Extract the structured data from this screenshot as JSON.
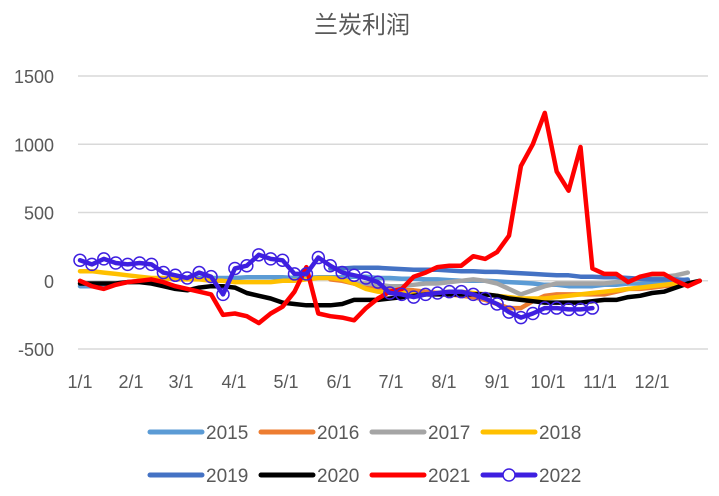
{
  "chart_data": {
    "type": "line",
    "title": "兰炭利润",
    "xlabel": "",
    "ylabel": "",
    "ylim": [
      -500,
      1500
    ],
    "yticks": [
      1500,
      1000,
      500,
      0,
      -500
    ],
    "xticks": [
      "1/1",
      "2/1",
      "3/1",
      "4/1",
      "5/1",
      "6/1",
      "7/1",
      "8/1",
      "9/1",
      "10/1",
      "11/1",
      "12/1"
    ],
    "x_unit": "week_of_year",
    "grid": true,
    "legend_position": "bottom",
    "series": [
      {
        "name": "2015",
        "color": "#5B9BD5",
        "marker": false,
        "values": [
          -40,
          -40,
          -30,
          -20,
          -10,
          0,
          10,
          15,
          20,
          20,
          20,
          20,
          20,
          20,
          25,
          25,
          25,
          25,
          20,
          20,
          25,
          25,
          25,
          30,
          30,
          20,
          20,
          15,
          15,
          10,
          10,
          5,
          0,
          0,
          0,
          -5,
          -10,
          -15,
          -20,
          -30,
          -30,
          -40,
          -40,
          -40,
          -30,
          -30,
          -20,
          -20,
          -10,
          -10,
          0,
          10
        ]
      },
      {
        "name": "2016",
        "color": "#ED7D31",
        "marker": false,
        "values": [
          null,
          null,
          null,
          null,
          null,
          null,
          null,
          null,
          null,
          null,
          null,
          null,
          null,
          null,
          null,
          null,
          null,
          null,
          null,
          null,
          null,
          10,
          0,
          -20,
          -40,
          -50,
          -60,
          -70,
          -70,
          -80,
          -90,
          -100,
          -110,
          -120,
          -140,
          -170,
          -200,
          -200,
          -150,
          -110,
          -100,
          -100,
          -100,
          -100,
          -100,
          -80,
          -60,
          -60,
          -50,
          -40,
          -30,
          -20
        ]
      },
      {
        "name": "2017",
        "color": "#A5A5A5",
        "marker": false,
        "values": [
          null,
          null,
          null,
          null,
          null,
          null,
          null,
          null,
          null,
          null,
          null,
          null,
          null,
          null,
          null,
          null,
          null,
          null,
          null,
          null,
          null,
          null,
          null,
          -20,
          -20,
          -30,
          -40,
          -40,
          -30,
          -20,
          -20,
          -10,
          0,
          10,
          0,
          -20,
          -60,
          -100,
          -70,
          -40,
          -20,
          -20,
          -20,
          -20,
          -20,
          -10,
          0,
          10,
          20,
          30,
          40,
          60
        ]
      },
      {
        "name": "2018",
        "color": "#FFC000",
        "marker": false,
        "values": [
          70,
          70,
          60,
          50,
          40,
          30,
          20,
          20,
          10,
          10,
          10,
          0,
          0,
          -10,
          -10,
          -10,
          -10,
          0,
          0,
          10,
          20,
          20,
          10,
          -20,
          -60,
          -80,
          -90,
          -90,
          -100,
          -100,
          -90,
          -80,
          -80,
          -90,
          -100,
          -110,
          -120,
          -130,
          -130,
          -130,
          -120,
          -110,
          -100,
          -90,
          -80,
          -70,
          -60,
          -50,
          -40,
          -30,
          -20,
          -10
        ]
      },
      {
        "name": "2019",
        "color": "#4472C4",
        "marker": false,
        "values": [
          null,
          null,
          null,
          null,
          null,
          null,
          null,
          null,
          null,
          null,
          null,
          null,
          null,
          null,
          null,
          null,
          null,
          null,
          null,
          null,
          null,
          90,
          90,
          95,
          95,
          95,
          90,
          85,
          80,
          80,
          80,
          75,
          70,
          70,
          65,
          65,
          60,
          55,
          50,
          45,
          40,
          40,
          30,
          30,
          25,
          25,
          20,
          15,
          10,
          10,
          10,
          5
        ]
      },
      {
        "name": "2020",
        "color": "#000000",
        "marker": false,
        "values": [
          -20,
          -20,
          -20,
          -20,
          -10,
          -10,
          -20,
          -40,
          -60,
          -70,
          -50,
          -40,
          -40,
          -50,
          -90,
          -110,
          -130,
          -160,
          -170,
          -180,
          -180,
          -180,
          -170,
          -140,
          -140,
          -140,
          -130,
          -120,
          -110,
          -100,
          -100,
          -100,
          -100,
          -100,
          -100,
          -110,
          -130,
          -140,
          -150,
          -160,
          -160,
          -160,
          -160,
          -150,
          -140,
          -140,
          -120,
          -110,
          -90,
          -80,
          -50,
          -20,
          0,
          10,
          0
        ]
      },
      {
        "name": "2021",
        "color": "#FF0000",
        "marker": false,
        "values": [
          0,
          -40,
          -60,
          -30,
          -10,
          0,
          10,
          -10,
          -40,
          -60,
          -80,
          -100,
          -250,
          -240,
          -260,
          -310,
          -240,
          -190,
          -80,
          100,
          -240,
          -260,
          -270,
          -290,
          -200,
          -130,
          -80,
          -60,
          30,
          60,
          100,
          110,
          110,
          180,
          160,
          210,
          330,
          840,
          1000,
          1230,
          800,
          660,
          980,
          90,
          50,
          50,
          -10,
          30,
          50,
          50,
          0,
          -40,
          0
        ]
      },
      {
        "name": "2022",
        "color": "#3E1FE0",
        "marker": true,
        "values": [
          150,
          120,
          160,
          130,
          120,
          130,
          120,
          60,
          40,
          20,
          60,
          30,
          -100,
          90,
          110,
          190,
          160,
          150,
          50,
          50,
          170,
          110,
          60,
          40,
          20,
          -10,
          -90,
          -100,
          -120,
          -100,
          -90,
          -80,
          -80,
          -100,
          -130,
          -170,
          -230,
          -270,
          -240,
          -200,
          -200,
          -210,
          -210,
          -200
        ]
      }
    ]
  }
}
